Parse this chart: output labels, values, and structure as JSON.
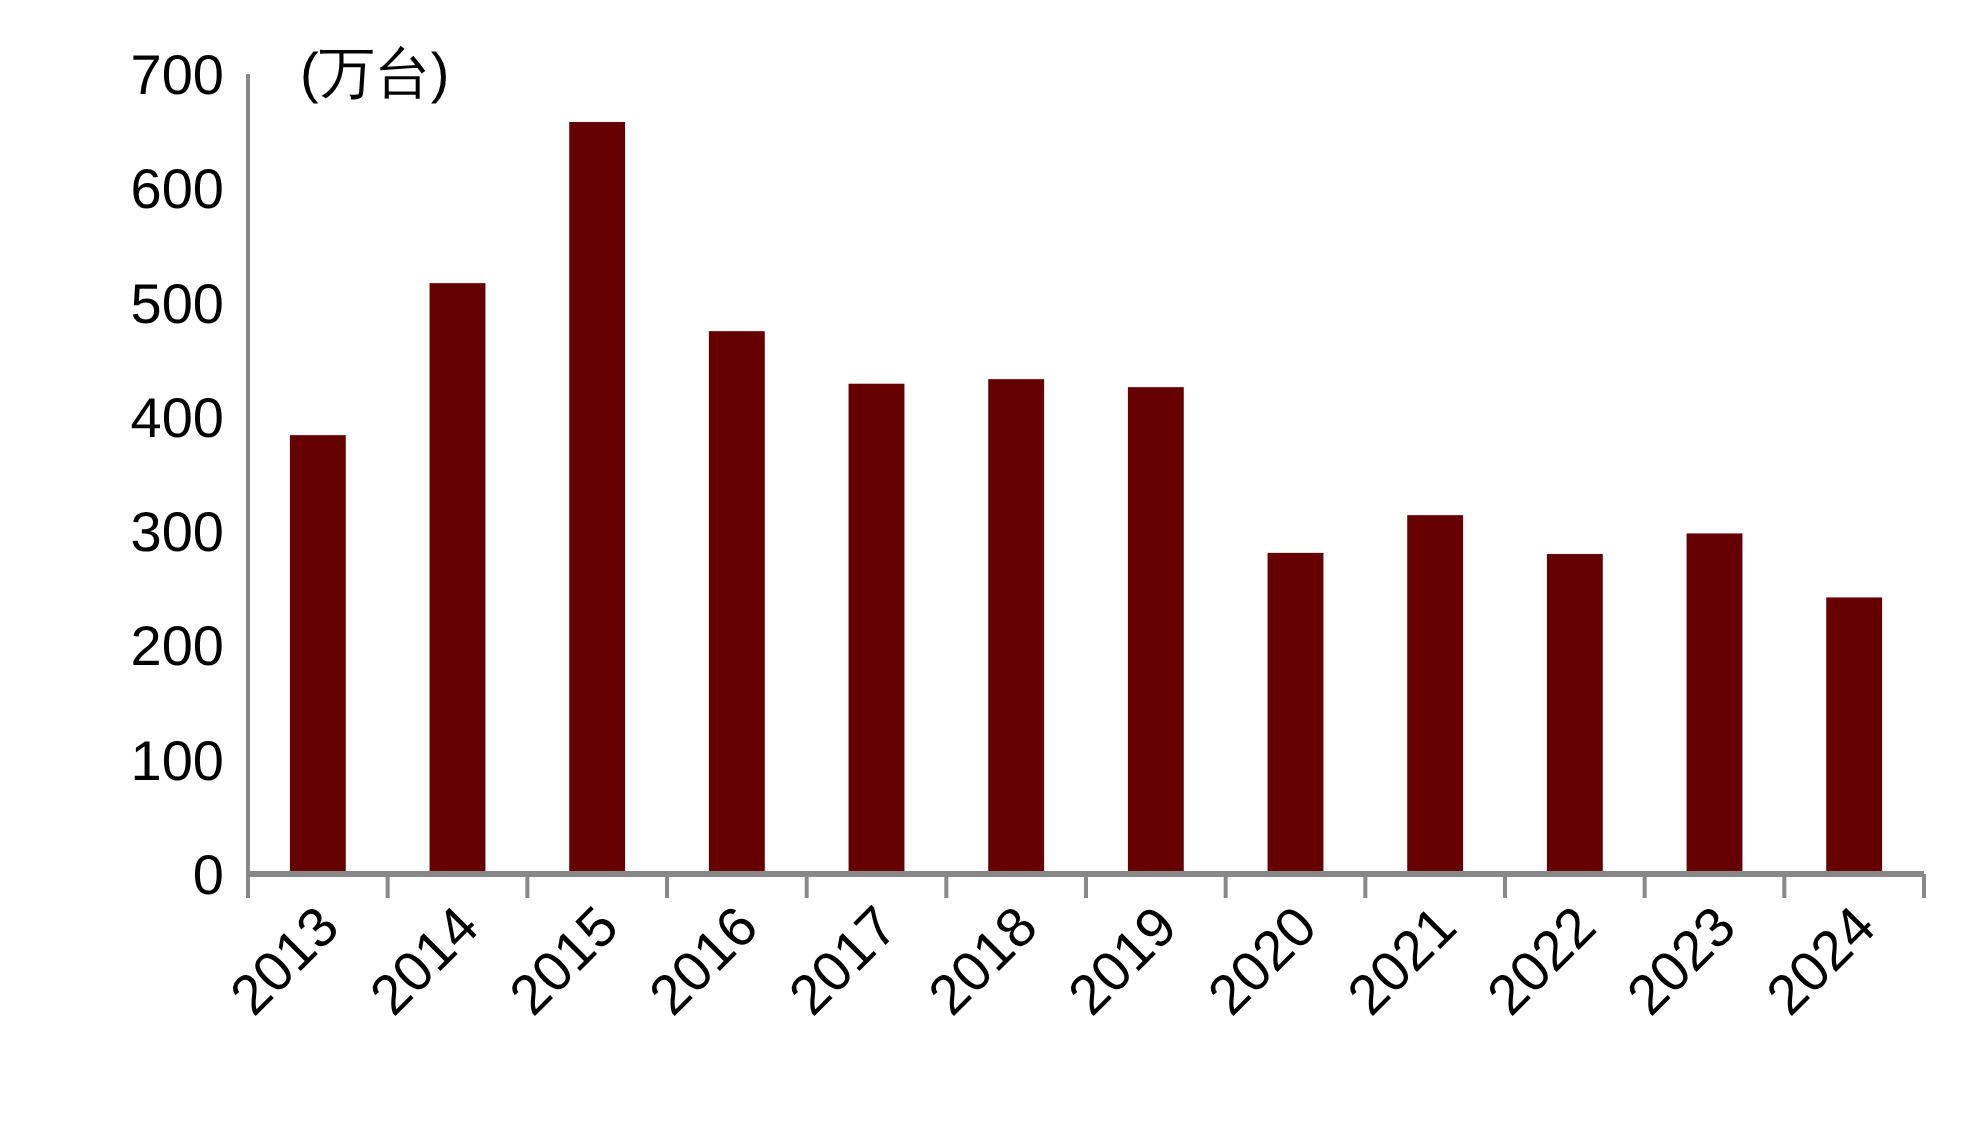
{
  "chart_data": {
    "type": "bar",
    "ylabel": "(万台)",
    "categories": [
      "2013",
      "2014",
      "2015",
      "2016",
      "2017",
      "2018",
      "2019",
      "2020",
      "2021",
      "2022",
      "2023",
      "2024"
    ],
    "values": [
      384,
      517,
      658,
      475,
      429,
      433,
      426,
      281,
      314,
      280,
      298,
      242
    ],
    "color": "#660000",
    "ylim": [
      0,
      700
    ],
    "yticks": [
      0,
      100,
      200,
      300,
      400,
      500,
      600,
      700
    ],
    "grid": false
  }
}
